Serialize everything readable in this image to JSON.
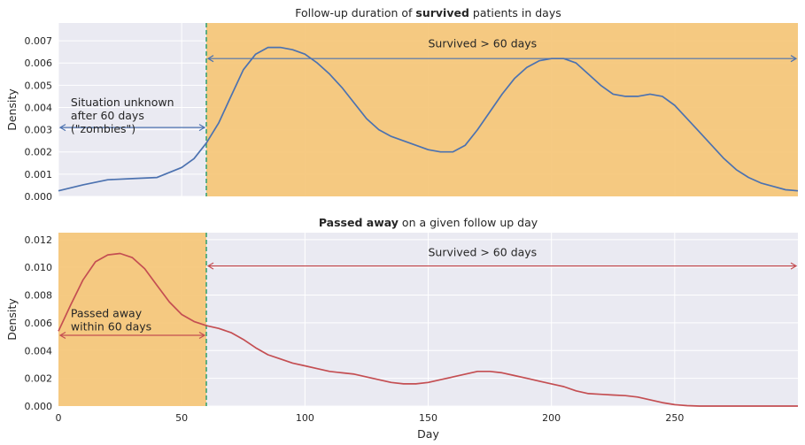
{
  "chart_data": [
    {
      "type": "line",
      "title_prefix": "Follow-up duration of ",
      "title_bold": "survived",
      "title_suffix": " patients in days",
      "xlabel": "",
      "ylabel": "Density",
      "xlim": [
        0,
        300
      ],
      "ylim": [
        0,
        0.0078
      ],
      "yticks": [
        "0.000",
        "0.001",
        "0.002",
        "0.003",
        "0.004",
        "0.005",
        "0.006",
        "0.007"
      ],
      "ytick_values": [
        0,
        0.001,
        0.002,
        0.003,
        0.004,
        0.005,
        0.006,
        0.007
      ],
      "show_x_tick_labels": false,
      "vline_x": 60,
      "shaded_span": [
        60,
        300
      ],
      "shade_color": "#f5c678",
      "series_color": "#4c72b0",
      "series": [
        {
          "x": [
            0,
            10,
            20,
            30,
            40,
            50,
            55,
            60,
            65,
            70,
            75,
            80,
            85,
            90,
            95,
            100,
            105,
            110,
            115,
            120,
            125,
            130,
            135,
            140,
            145,
            150,
            155,
            160,
            165,
            170,
            175,
            180,
            185,
            190,
            195,
            200,
            205,
            210,
            215,
            220,
            225,
            230,
            235,
            240,
            245,
            250,
            255,
            260,
            265,
            270,
            275,
            280,
            285,
            290,
            295,
            300
          ],
          "y": [
            0.00025,
            0.00052,
            0.00075,
            0.0008,
            0.00085,
            0.0013,
            0.0017,
            0.0024,
            0.0033,
            0.0045,
            0.0057,
            0.0064,
            0.0067,
            0.0067,
            0.0066,
            0.0064,
            0.006,
            0.0055,
            0.0049,
            0.0042,
            0.0035,
            0.003,
            0.0027,
            0.0025,
            0.0023,
            0.0021,
            0.002,
            0.002,
            0.0023,
            0.003,
            0.0038,
            0.0046,
            0.0053,
            0.0058,
            0.0061,
            0.0062,
            0.0062,
            0.006,
            0.0055,
            0.005,
            0.0046,
            0.0045,
            0.0045,
            0.0046,
            0.0045,
            0.0041,
            0.0035,
            0.0029,
            0.0023,
            0.0017,
            0.0012,
            0.00085,
            0.0006,
            0.00045,
            0.0003,
            0.00025
          ]
        }
      ],
      "annotations": [
        {
          "lines": [
            "Situation unknown",
            "after 60 days",
            "(\"zombies\")"
          ],
          "x": 5,
          "y": 0.00405
        },
        {
          "lines": [
            "Survived > 60 days"
          ],
          "x": 150,
          "y": 0.0067
        }
      ],
      "arrows": [
        {
          "x1": 0,
          "x2": 60,
          "y": 0.0031
        },
        {
          "x1": 60,
          "x2": 300,
          "y": 0.0062
        }
      ]
    },
    {
      "type": "line",
      "title_prefix": "",
      "title_bold": "Passed away",
      "title_suffix": " on a given follow up day",
      "xlabel": "Day",
      "ylabel": "Density",
      "xlim": [
        0,
        300
      ],
      "ylim": [
        0,
        0.0125
      ],
      "yticks": [
        "0.000",
        "0.002",
        "0.004",
        "0.006",
        "0.008",
        "0.010",
        "0.012"
      ],
      "ytick_values": [
        0,
        0.002,
        0.004,
        0.006,
        0.008,
        0.01,
        0.012
      ],
      "xticks": [
        "0",
        "50",
        "100",
        "150",
        "200",
        "250"
      ],
      "xtick_values": [
        0,
        50,
        100,
        150,
        200,
        250
      ],
      "show_x_tick_labels": true,
      "vline_x": 60,
      "shaded_span": [
        0,
        60
      ],
      "shade_color": "#f5c678",
      "series_color": "#c44e52",
      "series": [
        {
          "x": [
            0,
            5,
            10,
            15,
            20,
            25,
            30,
            35,
            40,
            45,
            50,
            55,
            60,
            65,
            70,
            75,
            80,
            85,
            90,
            95,
            100,
            105,
            110,
            115,
            120,
            125,
            130,
            135,
            140,
            145,
            150,
            155,
            160,
            165,
            170,
            175,
            180,
            185,
            190,
            195,
            200,
            205,
            210,
            215,
            220,
            225,
            230,
            235,
            240,
            245,
            250,
            255,
            260,
            265,
            270,
            275,
            280,
            285,
            290,
            295,
            300
          ],
          "y": [
            0.0054,
            0.0073,
            0.0091,
            0.0104,
            0.0109,
            0.011,
            0.0107,
            0.0099,
            0.0087,
            0.0075,
            0.0066,
            0.0061,
            0.0058,
            0.0056,
            0.0053,
            0.0048,
            0.0042,
            0.0037,
            0.0034,
            0.0031,
            0.0029,
            0.0027,
            0.0025,
            0.0024,
            0.0023,
            0.0021,
            0.0019,
            0.0017,
            0.0016,
            0.0016,
            0.0017,
            0.0019,
            0.0021,
            0.0023,
            0.0025,
            0.0025,
            0.0024,
            0.0022,
            0.002,
            0.0018,
            0.0016,
            0.0014,
            0.0011,
            0.0009,
            0.00085,
            0.0008,
            0.00075,
            0.00065,
            0.00045,
            0.00025,
            0.0001,
            3e-05,
            0.0,
            0.0,
            0.0,
            0.0,
            0.0,
            0.0,
            0.0,
            0.0,
            0.0
          ]
        }
      ],
      "annotations": [
        {
          "lines": [
            "Passed away",
            "within 60 days"
          ],
          "x": 5,
          "y": 0.0064
        },
        {
          "lines": [
            "Survived > 60 days"
          ],
          "x": 150,
          "y": 0.0108
        }
      ],
      "arrows": [
        {
          "x1": 0,
          "x2": 60,
          "y": 0.0051
        },
        {
          "x1": 60,
          "x2": 300,
          "y": 0.0101
        }
      ]
    }
  ]
}
